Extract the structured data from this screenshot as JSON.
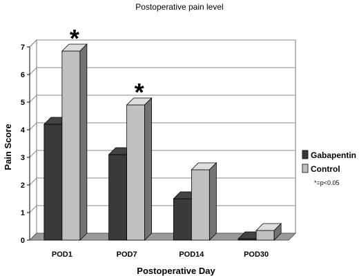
{
  "chart_data": {
    "type": "bar",
    "title": "Postoperative pain level",
    "xlabel": "Postoperative Day",
    "ylabel": "Pain Score",
    "ylim": [
      0,
      7
    ],
    "yticks": [
      "0",
      "1",
      "2",
      "3",
      "4",
      "5",
      "6",
      "7"
    ],
    "categories": [
      "POD1",
      "POD7",
      "POD14",
      "POD30"
    ],
    "series": [
      {
        "name": "Gabapentin",
        "color": "#3a3a3a",
        "values": [
          4.2,
          3.1,
          1.5,
          0.05
        ]
      },
      {
        "name": "Control",
        "color": "#c0c0c0",
        "values": [
          6.85,
          4.9,
          2.55,
          0.35
        ]
      }
    ],
    "significance_marker": "*",
    "significant_categories": [
      "POD1",
      "POD7"
    ],
    "note": "*=p<0.05",
    "grid": true,
    "legend_position": "right",
    "style": "3d"
  }
}
